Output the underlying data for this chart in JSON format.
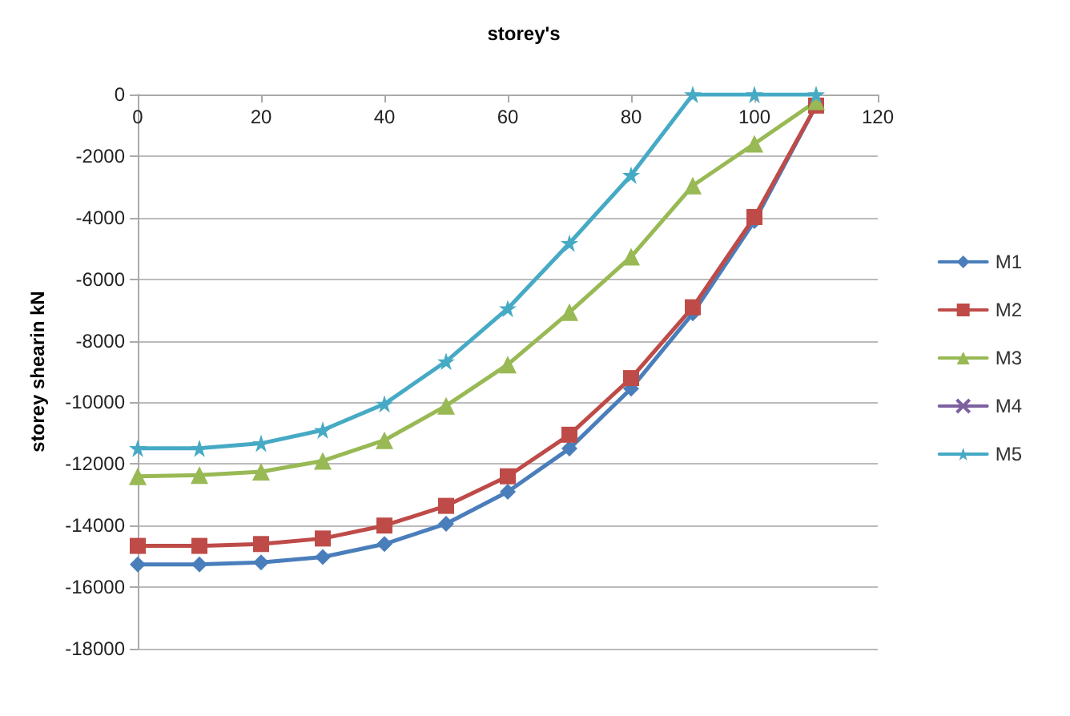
{
  "chart_data": {
    "type": "line",
    "title": "storey's",
    "ylabel": "storey shearin kN",
    "x": [
      0,
      10,
      20,
      30,
      40,
      50,
      60,
      70,
      80,
      90,
      100,
      110
    ],
    "series": [
      {
        "name": "M1",
        "color": "#4a7ebb",
        "marker": "diamond",
        "values": [
          -15260,
          -15260,
          -15200,
          -15020,
          -14600,
          -13940,
          -12900,
          -11500,
          -9550,
          -7110,
          -4110,
          -360
        ]
      },
      {
        "name": "M2",
        "color": "#be4b48",
        "marker": "square",
        "values": [
          -14660,
          -14660,
          -14600,
          -14420,
          -14000,
          -13360,
          -12400,
          -11050,
          -9210,
          -6910,
          -3980,
          -360
        ]
      },
      {
        "name": "M3",
        "color": "#98b954",
        "marker": "triangle",
        "values": [
          -12400,
          -12360,
          -12250,
          -11900,
          -11230,
          -10110,
          -8770,
          -7070,
          -5270,
          -2960,
          -1600,
          -220
        ]
      },
      {
        "name": "M4",
        "color": "#7d60a0",
        "marker": "cross",
        "values": [
          null,
          null,
          null,
          null,
          null,
          null,
          null,
          null,
          null,
          null,
          null,
          null
        ]
      },
      {
        "name": "M5",
        "color": "#46aac5",
        "marker": "star",
        "values": [
          -11490,
          -11490,
          -11330,
          -10900,
          -10050,
          -8670,
          -6950,
          -4830,
          -2620,
          0,
          0,
          0
        ]
      }
    ],
    "xlim": [
      0,
      120
    ],
    "xticks": [
      0,
      20,
      40,
      60,
      80,
      100,
      120
    ],
    "ylim": [
      -18000,
      0
    ],
    "yticks": [
      -18000,
      -16000,
      -14000,
      -12000,
      -10000,
      -8000,
      -6000,
      -4000,
      -2000,
      0
    ],
    "grid": "y",
    "legend": "right",
    "line_style": "solid"
  }
}
